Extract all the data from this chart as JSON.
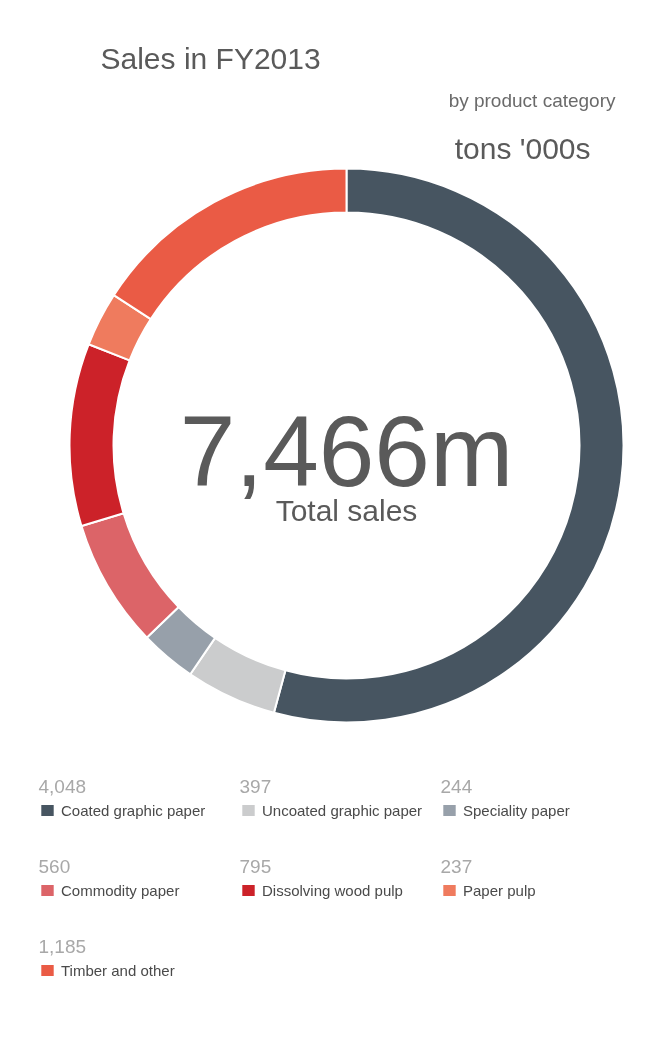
{
  "chart_data": {
    "type": "donut",
    "title": "Sales in FY2013",
    "subtitle": "by product category",
    "ylabel": "tons '000s",
    "categories": [
      "Coated graphic paper",
      "Uncoated graphic paper",
      "Speciality paper",
      "Commodity paper",
      "Dissolving wood pulp",
      "Paper pulp",
      "Timber and other"
    ],
    "values": [
      4048,
      397,
      244,
      560,
      795,
      237,
      1185
    ],
    "colors": [
      "#475561",
      "#cbcccd",
      "#97a0aa",
      "#dc6468",
      "#cc2229",
      "#ef7b5e",
      "#ea5b45"
    ],
    "value_labels": [
      "4,048",
      "397",
      "244",
      "560",
      "795",
      "237",
      "1,185"
    ],
    "annotations": [
      "7,466m",
      "Total sales"
    ],
    "legend": "bottom"
  }
}
